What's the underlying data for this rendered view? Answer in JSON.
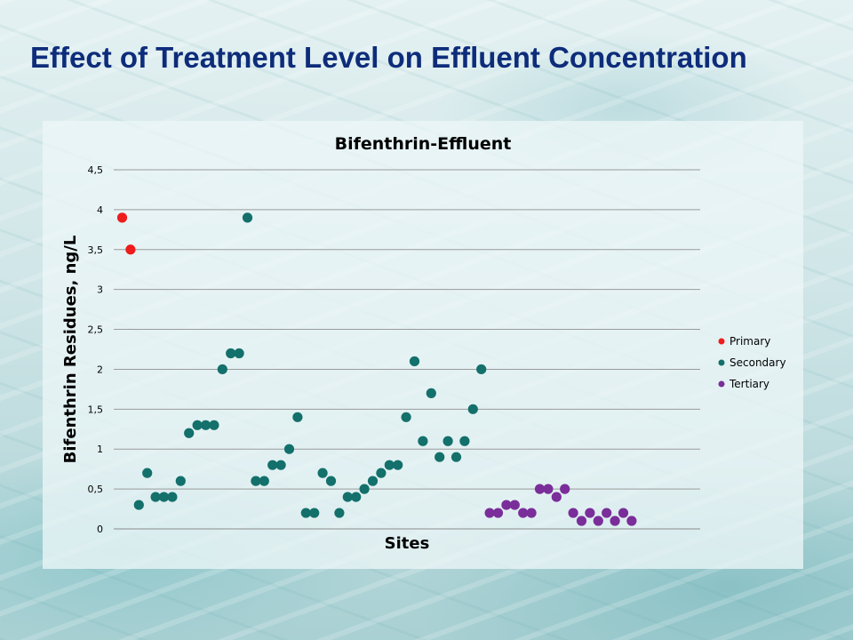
{
  "slide": {
    "title": "Effect of Treatment Level on Effluent Concentration"
  },
  "chart_data": {
    "type": "scatter",
    "title": "Bifenthrin-Effluent",
    "xlabel": "Sites",
    "ylabel": "Bifenthrin Residues, ng/L",
    "ylim": [
      0,
      4.5
    ],
    "yticks": [
      "0",
      "0,5",
      "1",
      "1,5",
      "2",
      "2,5",
      "3",
      "3,5",
      "4",
      "4,5"
    ],
    "ytick_values": [
      0,
      0.5,
      1,
      1.5,
      2,
      2.5,
      3,
      3.5,
      4,
      4.5
    ],
    "xlim": [
      0,
      70
    ],
    "grid": true,
    "legend": "right",
    "series": [
      {
        "name": "Primary",
        "color": "#ee1c1c",
        "points": [
          [
            1,
            3.9
          ],
          [
            2,
            3.5
          ]
        ]
      },
      {
        "name": "Secondary",
        "color": "#13706b",
        "points": [
          [
            3,
            0.3
          ],
          [
            4,
            0.7
          ],
          [
            5,
            0.4
          ],
          [
            6,
            0.4
          ],
          [
            7,
            0.4
          ],
          [
            8,
            0.6
          ],
          [
            9,
            1.2
          ],
          [
            10,
            1.3
          ],
          [
            11,
            1.3
          ],
          [
            12,
            1.3
          ],
          [
            13,
            2.0
          ],
          [
            14,
            2.2
          ],
          [
            15,
            2.2
          ],
          [
            16,
            3.9
          ],
          [
            17,
            0.6
          ],
          [
            18,
            0.6
          ],
          [
            19,
            0.8
          ],
          [
            20,
            0.8
          ],
          [
            21,
            1.0
          ],
          [
            22,
            1.4
          ],
          [
            23,
            0.2
          ],
          [
            24,
            0.2
          ],
          [
            25,
            0.7
          ],
          [
            26,
            0.6
          ],
          [
            27,
            0.2
          ],
          [
            28,
            0.4
          ],
          [
            29,
            0.4
          ],
          [
            30,
            0.5
          ],
          [
            31,
            0.6
          ],
          [
            32,
            0.7
          ],
          [
            33,
            0.8
          ],
          [
            34,
            0.8
          ],
          [
            35,
            1.4
          ],
          [
            36,
            2.1
          ],
          [
            37,
            1.1
          ],
          [
            38,
            1.7
          ],
          [
            39,
            0.9
          ],
          [
            40,
            1.1
          ],
          [
            41,
            0.9
          ],
          [
            42,
            1.1
          ],
          [
            43,
            1.5
          ],
          [
            44,
            2.0
          ]
        ]
      },
      {
        "name": "Tertiary",
        "color": "#7a2e9a",
        "points": [
          [
            45,
            0.2
          ],
          [
            46,
            0.2
          ],
          [
            47,
            0.3
          ],
          [
            48,
            0.3
          ],
          [
            49,
            0.2
          ],
          [
            50,
            0.2
          ],
          [
            51,
            0.5
          ],
          [
            52,
            0.5
          ],
          [
            53,
            0.4
          ],
          [
            54,
            0.5
          ],
          [
            55,
            0.2
          ],
          [
            56,
            0.1
          ],
          [
            57,
            0.2
          ],
          [
            58,
            0.1
          ],
          [
            59,
            0.2
          ],
          [
            60,
            0.1
          ],
          [
            61,
            0.2
          ],
          [
            62,
            0.1
          ]
        ]
      }
    ]
  }
}
